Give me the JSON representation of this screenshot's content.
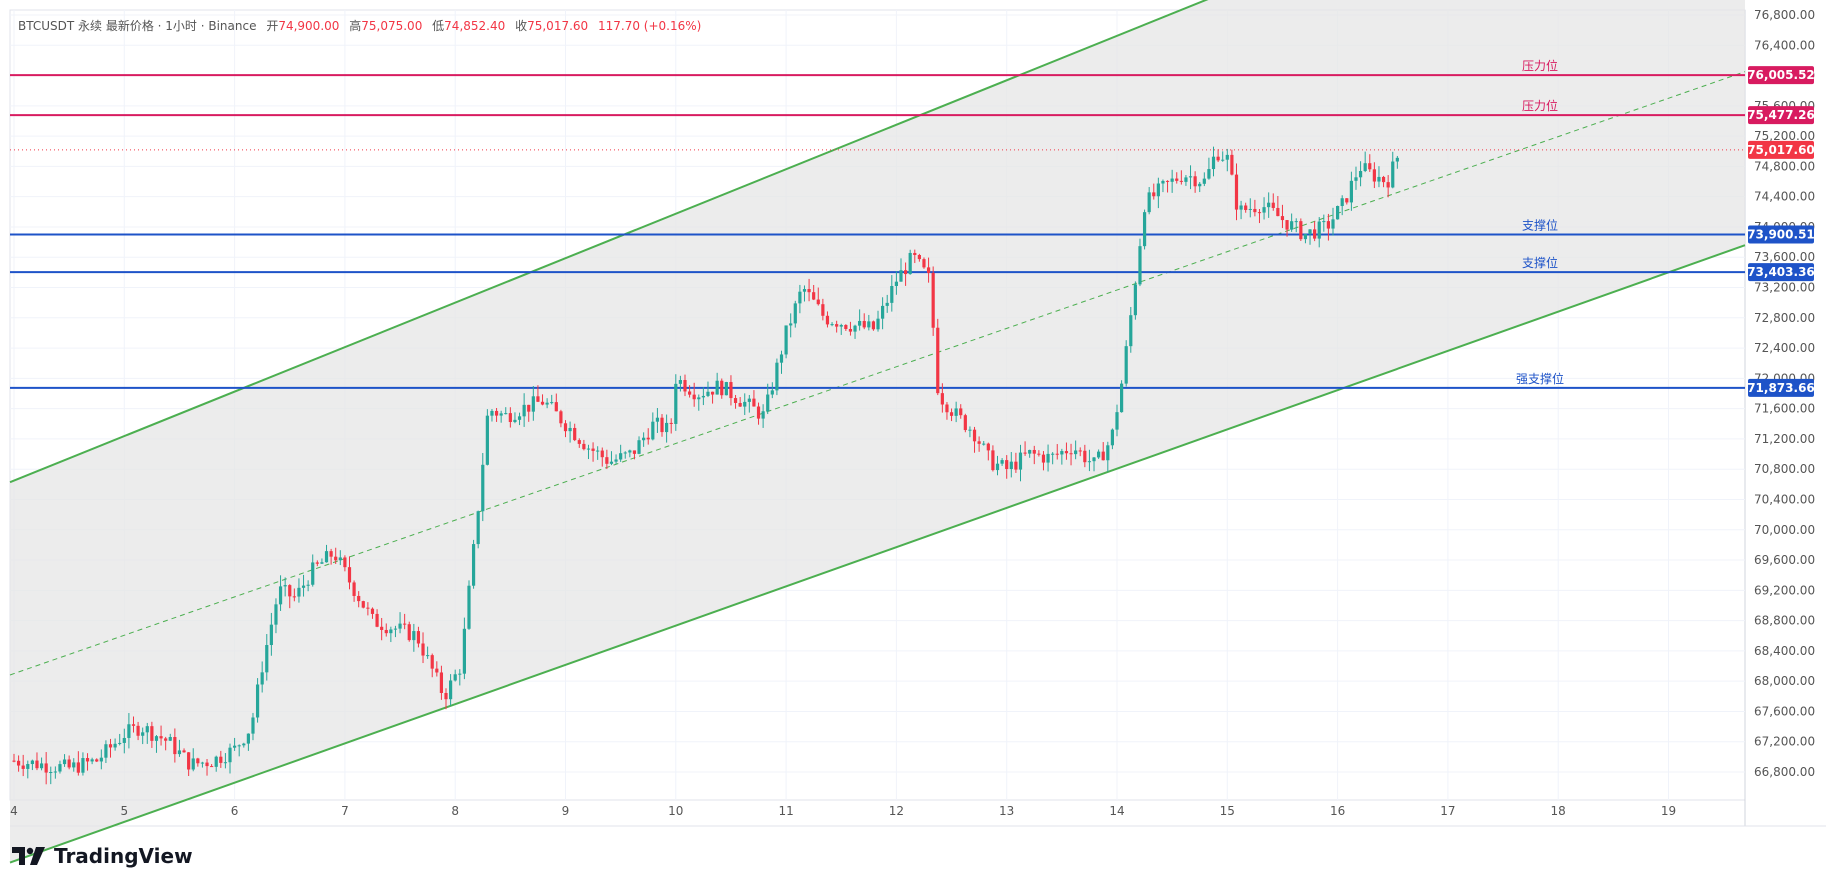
{
  "header": {
    "symbol": "BTCUSDT 永续 最新价格 · 1小时 · Binance",
    "open_label": "开",
    "open": "74,900.00",
    "high_label": "高",
    "high": "75,075.00",
    "low_label": "低",
    "low": "74,852.40",
    "close_label": "收",
    "close": "75,017.60",
    "change": "117.70 (+0.16%)"
  },
  "brand": {
    "name": "TradingView"
  },
  "colors": {
    "up": "#26a69a",
    "down": "#f23645",
    "channel": "#4caf50",
    "resistance": "#d81b60",
    "support": "#1e53c8",
    "channel_fill": "#e6e6e6"
  },
  "chart_data": {
    "type": "candlestick",
    "x_ticks": [
      "4",
      "5",
      "6",
      "7",
      "8",
      "9",
      "10",
      "11",
      "12",
      "13",
      "14",
      "15",
      "16",
      "17",
      "18",
      "19"
    ],
    "y_ticks": [
      "76,800.00",
      "76,400.00",
      "76,000.00",
      "75,600.00",
      "75,200.00",
      "74,800.00",
      "74,400.00",
      "74,000.00",
      "73,600.00",
      "73,200.00",
      "72,800.00",
      "72,400.00",
      "72,000.00",
      "71,600.00",
      "71,200.00",
      "70,800.00",
      "70,400.00",
      "70,000.00",
      "69,600.00",
      "69,200.00",
      "68,800.00",
      "68,400.00",
      "68,000.00",
      "67,600.00",
      "67,200.00",
      "66,800.00"
    ],
    "ylim": [
      66500,
      76850
    ],
    "grid": true,
    "current_price": {
      "value": 75017.6,
      "label": "75,017.60"
    },
    "horizontal_levels": [
      {
        "name": "压力位",
        "value": 76005.52,
        "label": "76,005.52",
        "kind": "resistance"
      },
      {
        "name": "压力位",
        "value": 75477.26,
        "label": "75,477.26",
        "kind": "resistance"
      },
      {
        "name": "支撑位",
        "value": 73900.51,
        "label": "73,900.51",
        "kind": "support"
      },
      {
        "name": "支撑位",
        "value": 73403.36,
        "label": "73,403.36",
        "kind": "support"
      },
      {
        "name": "强支撑位",
        "value": 71873.66,
        "label": "71,873.66",
        "kind": "support"
      }
    ],
    "channel": {
      "upper": [
        {
          "day": 4.0,
          "price": 70650
        },
        {
          "day": 16.0,
          "price": 77700
        }
      ],
      "lower": [
        {
          "day": 5.5,
          "price": 66400
        },
        {
          "day": 19.0,
          "price": 73400
        }
      ],
      "mid": [
        {
          "day": 4.0,
          "price": 68100
        },
        {
          "day": 19.0,
          "price": 75700
        }
      ]
    },
    "price_path": [
      [
        4.0,
        66950
      ],
      [
        4.25,
        66900
      ],
      [
        4.5,
        66850
      ],
      [
        4.75,
        66950
      ],
      [
        5.0,
        67300
      ],
      [
        5.15,
        67400
      ],
      [
        5.4,
        67200
      ],
      [
        5.6,
        66900
      ],
      [
        5.8,
        66950
      ],
      [
        6.0,
        67100
      ],
      [
        6.15,
        67400
      ],
      [
        6.25,
        68200
      ],
      [
        6.4,
        69200
      ],
      [
        6.55,
        69100
      ],
      [
        6.7,
        69450
      ],
      [
        6.9,
        69700
      ],
      [
        7.05,
        69300
      ],
      [
        7.25,
        68800
      ],
      [
        7.45,
        68700
      ],
      [
        7.65,
        68600
      ],
      [
        7.9,
        67800
      ],
      [
        8.05,
        68200
      ],
      [
        8.18,
        69900
      ],
      [
        8.3,
        71600
      ],
      [
        8.45,
        71500
      ],
      [
        8.6,
        71600
      ],
      [
        8.8,
        71700
      ],
      [
        9.0,
        71400
      ],
      [
        9.2,
        71100
      ],
      [
        9.4,
        70900
      ],
      [
        9.6,
        71000
      ],
      [
        9.8,
        71400
      ],
      [
        9.95,
        71300
      ],
      [
        10.0,
        72000
      ],
      [
        10.2,
        71800
      ],
      [
        10.4,
        71900
      ],
      [
        10.6,
        71700
      ],
      [
        10.8,
        71500
      ],
      [
        11.0,
        72600
      ],
      [
        11.15,
        73200
      ],
      [
        11.35,
        72800
      ],
      [
        11.6,
        72700
      ],
      [
        11.8,
        72650
      ],
      [
        12.0,
        73300
      ],
      [
        12.15,
        73600
      ],
      [
        12.3,
        73300
      ],
      [
        12.38,
        71800
      ],
      [
        12.55,
        71500
      ],
      [
        12.7,
        71300
      ],
      [
        12.85,
        70900
      ],
      [
        13.0,
        70800
      ],
      [
        13.2,
        71000
      ],
      [
        13.4,
        70950
      ],
      [
        13.6,
        71100
      ],
      [
        13.8,
        70850
      ],
      [
        13.95,
        71200
      ],
      [
        14.05,
        72000
      ],
      [
        14.15,
        73100
      ],
      [
        14.25,
        74300
      ],
      [
        14.4,
        74500
      ],
      [
        14.6,
        74700
      ],
      [
        14.8,
        74600
      ],
      [
        14.9,
        75000
      ],
      [
        15.0,
        74900
      ],
      [
        15.1,
        74200
      ],
      [
        15.3,
        74300
      ],
      [
        15.5,
        74100
      ],
      [
        15.7,
        73900
      ],
      [
        15.9,
        74000
      ],
      [
        16.05,
        74300
      ],
      [
        16.2,
        74800
      ],
      [
        16.3,
        74700
      ],
      [
        16.45,
        74600
      ],
      [
        16.55,
        74950
      ]
    ]
  }
}
